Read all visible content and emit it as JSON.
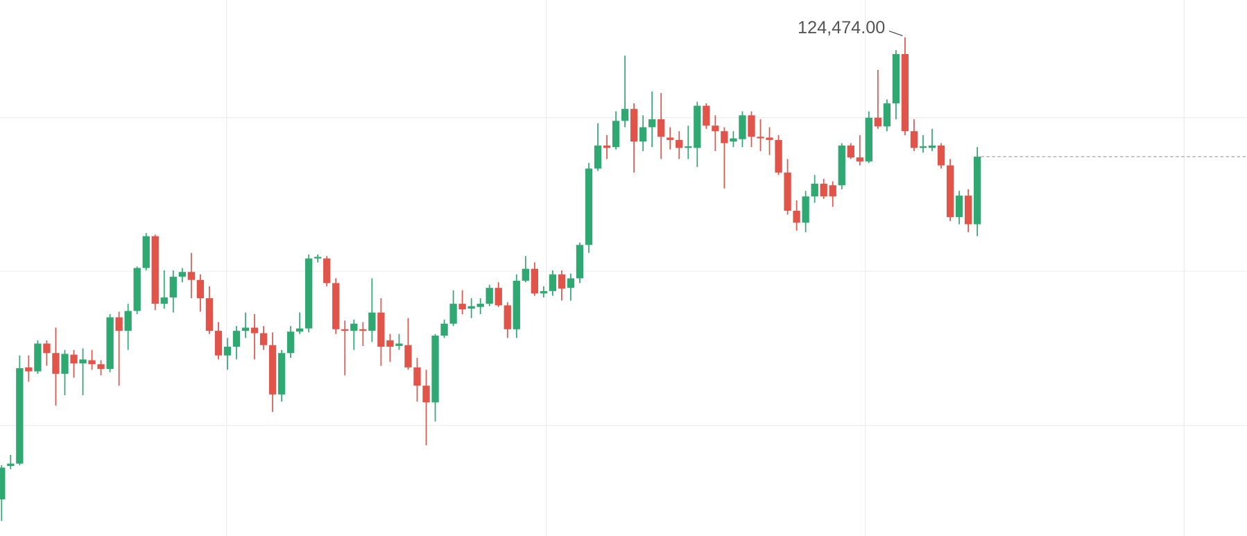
{
  "chart_data": {
    "type": "candlestick",
    "categories": [
      null,
      null,
      null,
      null,
      null,
      null,
      null,
      null,
      null,
      null,
      null,
      null,
      null,
      null,
      null,
      null,
      null,
      null,
      null,
      null,
      null,
      null,
      null,
      null,
      null,
      null,
      null,
      null,
      null,
      null,
      null,
      null,
      null,
      null,
      null,
      null,
      null,
      null,
      null,
      null,
      null,
      null,
      null,
      null,
      null,
      null,
      null,
      null,
      null,
      null,
      null,
      null,
      null,
      null,
      null,
      null,
      null,
      null,
      null,
      null,
      null,
      null,
      null,
      null,
      null,
      null,
      null,
      null,
      null,
      null,
      null,
      null,
      null,
      null,
      null,
      null,
      null,
      null,
      null,
      null,
      null,
      null,
      null,
      null,
      null,
      null,
      null,
      null,
      null,
      null,
      null,
      null,
      null,
      null,
      null,
      null,
      null,
      null,
      null,
      null,
      null,
      null,
      null,
      null,
      null,
      null,
      null,
      null,
      null
    ],
    "open": [
      112854,
      113694,
      113754,
      116174,
      116074,
      116774,
      116534,
      116014,
      116494,
      116274,
      116354,
      116254,
      116134,
      117434,
      117094,
      117594,
      118674,
      119474,
      117774,
      117934,
      118454,
      118574,
      118374,
      117914,
      117094,
      116474,
      116694,
      117094,
      117174,
      117034,
      116734,
      115494,
      116534,
      117074,
      117154,
      118914,
      118914,
      118294,
      117134,
      117094,
      117134,
      117094,
      117554,
      116854,
      116714,
      116734,
      116174,
      115714,
      115294,
      116974,
      117274,
      117774,
      117654,
      117694,
      117774,
      118174,
      117734,
      117134,
      118354,
      118654,
      118034,
      118094,
      118514,
      118174,
      118414,
      119254,
      121174,
      121754,
      121714,
      122374,
      122674,
      121854,
      122214,
      122414,
      121954,
      121894,
      121694,
      121694,
      122754,
      122254,
      122114,
      121854,
      121914,
      122514,
      121974,
      121954,
      121894,
      121074,
      120114,
      119814,
      120474,
      120794,
      120754,
      120754,
      121754,
      121454,
      121354,
      122454,
      122234,
      122814,
      124054,
      122114,
      121694,
      121694,
      121754,
      121254,
      119954,
      120494,
      119774
    ],
    "high": [
      113714,
      113974,
      116474,
      116474,
      116854,
      116854,
      117174,
      116614,
      116614,
      116654,
      116614,
      116354,
      117514,
      117574,
      117774,
      118714,
      119554,
      119514,
      118614,
      118614,
      118674,
      119054,
      118514,
      118214,
      117314,
      116914,
      117214,
      117554,
      117514,
      117214,
      117054,
      116614,
      117214,
      117554,
      119014,
      119014,
      118974,
      118414,
      117354,
      117374,
      117314,
      118414,
      117914,
      117014,
      117014,
      117414,
      116414,
      116114,
      117014,
      117374,
      118114,
      118114,
      117914,
      117914,
      118254,
      118314,
      117814,
      118514,
      118974,
      118814,
      118214,
      118614,
      118614,
      118534,
      119314,
      121314,
      122314,
      122014,
      122614,
      124014,
      122814,
      122514,
      123114,
      123074,
      122214,
      122114,
      122254,
      122854,
      122814,
      122514,
      122214,
      122114,
      122614,
      122614,
      122414,
      122214,
      122014,
      121414,
      120374,
      120614,
      121014,
      120914,
      120854,
      121814,
      121814,
      122014,
      122614,
      123654,
      122914,
      124154,
      124474,
      122414,
      122014,
      122174,
      121814,
      121414,
      120614,
      120654,
      121714
    ],
    "low": [
      112314,
      113614,
      113714,
      115814,
      116014,
      116214,
      115214,
      115474,
      115914,
      115474,
      116114,
      115974,
      116054,
      115714,
      116614,
      117514,
      118614,
      117614,
      117654,
      117554,
      118314,
      117914,
      117574,
      117014,
      116374,
      116114,
      116374,
      116914,
      116374,
      116614,
      115054,
      115314,
      116414,
      117014,
      117054,
      118814,
      118214,
      117014,
      115974,
      116614,
      116714,
      116814,
      116214,
      116314,
      116614,
      116114,
      115314,
      114214,
      114814,
      116914,
      117214,
      117514,
      117414,
      117514,
      117714,
      117694,
      116914,
      116914,
      118314,
      117974,
      117934,
      117974,
      117854,
      117854,
      118294,
      119054,
      121114,
      121414,
      121654,
      122214,
      121074,
      121614,
      121714,
      121414,
      121654,
      121414,
      121414,
      121214,
      122174,
      121614,
      120674,
      121714,
      121714,
      121714,
      121614,
      121514,
      121014,
      120014,
      119614,
      119574,
      120314,
      120414,
      120214,
      120654,
      121414,
      121254,
      121314,
      122174,
      122114,
      122414,
      122014,
      121614,
      121574,
      121614,
      121174,
      119854,
      119774,
      119574,
      119474
    ],
    "close": [
      113654,
      113754,
      116154,
      116074,
      116774,
      116534,
      116014,
      116514,
      116274,
      116374,
      116254,
      116134,
      117434,
      117094,
      117594,
      118674,
      119474,
      117774,
      117934,
      118454,
      118574,
      118374,
      117914,
      117094,
      116474,
      116694,
      117094,
      117174,
      117034,
      116734,
      115494,
      116534,
      117074,
      117154,
      118914,
      118954,
      118294,
      117134,
      117094,
      117274,
      117094,
      117554,
      116694,
      116694,
      116774,
      116174,
      115714,
      115294,
      116974,
      117274,
      117774,
      117634,
      117714,
      117774,
      118174,
      117734,
      117134,
      118354,
      118654,
      118034,
      118094,
      118514,
      118154,
      118414,
      119254,
      121174,
      121754,
      121694,
      122374,
      122674,
      121854,
      122214,
      122414,
      121974,
      121894,
      121694,
      121734,
      122754,
      122254,
      122114,
      121814,
      121934,
      122514,
      121974,
      121934,
      121894,
      121074,
      120114,
      119814,
      120474,
      120794,
      120474,
      120474,
      121754,
      121454,
      121354,
      122454,
      122234,
      122814,
      124054,
      122114,
      121694,
      121734,
      121754,
      121254,
      119954,
      120494,
      119774,
      121474
    ],
    "up_color": "#2fa872",
    "down_color": "#e0544a",
    "ylim": [
      111934,
      125414
    ],
    "yticks": [
      114714,
      118594,
      122454
    ],
    "grid": true,
    "high_annotation": {
      "value": 124474,
      "label": "124,474.00"
    }
  }
}
